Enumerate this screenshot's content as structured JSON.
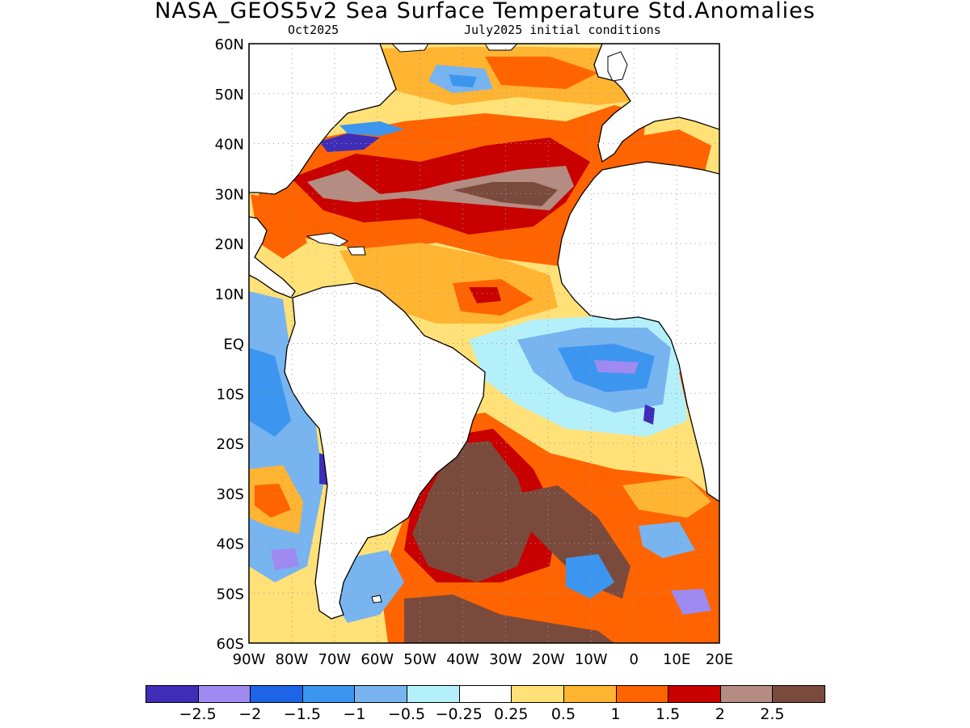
{
  "title": "NASA_GEOS5v2 Sea Surface Temperature Std.Anomalies",
  "subtitle_left": "Oct2025",
  "subtitle_right": "July2025 initial conditions",
  "map": {
    "projection": "lat-lon",
    "lon_range": [
      -90,
      20
    ],
    "lat_range": [
      -60,
      60
    ],
    "grid": "dotted",
    "lat_labels": [
      "60N",
      "50N",
      "40N",
      "30N",
      "20N",
      "10N",
      "EQ",
      "10S",
      "20S",
      "30S",
      "40S",
      "50S",
      "60S"
    ],
    "lat_values": [
      60,
      50,
      40,
      30,
      20,
      10,
      0,
      -10,
      -20,
      -30,
      -40,
      -50,
      -60
    ],
    "lon_labels": [
      "90W",
      "80W",
      "70W",
      "60W",
      "50W",
      "40W",
      "30W",
      "20W",
      "10W",
      "0",
      "10E",
      "20E"
    ],
    "lon_values": [
      -90,
      -80,
      -70,
      -60,
      -50,
      -40,
      -30,
      -20,
      -10,
      0,
      10,
      20
    ],
    "land_color": "#ffffff",
    "coast_color": "#000000"
  },
  "colorbar": {
    "colors": [
      "#3f2db8",
      "#9e8af0",
      "#1e64e6",
      "#3c96f0",
      "#78b4f0",
      "#b4f0fa",
      "#ffffff",
      "#ffe178",
      "#ffb432",
      "#ff6400",
      "#c80000",
      "#b48c82",
      "#7a4b3c"
    ],
    "labels": [
      "-2.5",
      "-2",
      "-1.5",
      "-1",
      "-0.5",
      "-0.25",
      "0.25",
      "0.5",
      "1",
      "1.5",
      "2",
      "2.5"
    ]
  }
}
